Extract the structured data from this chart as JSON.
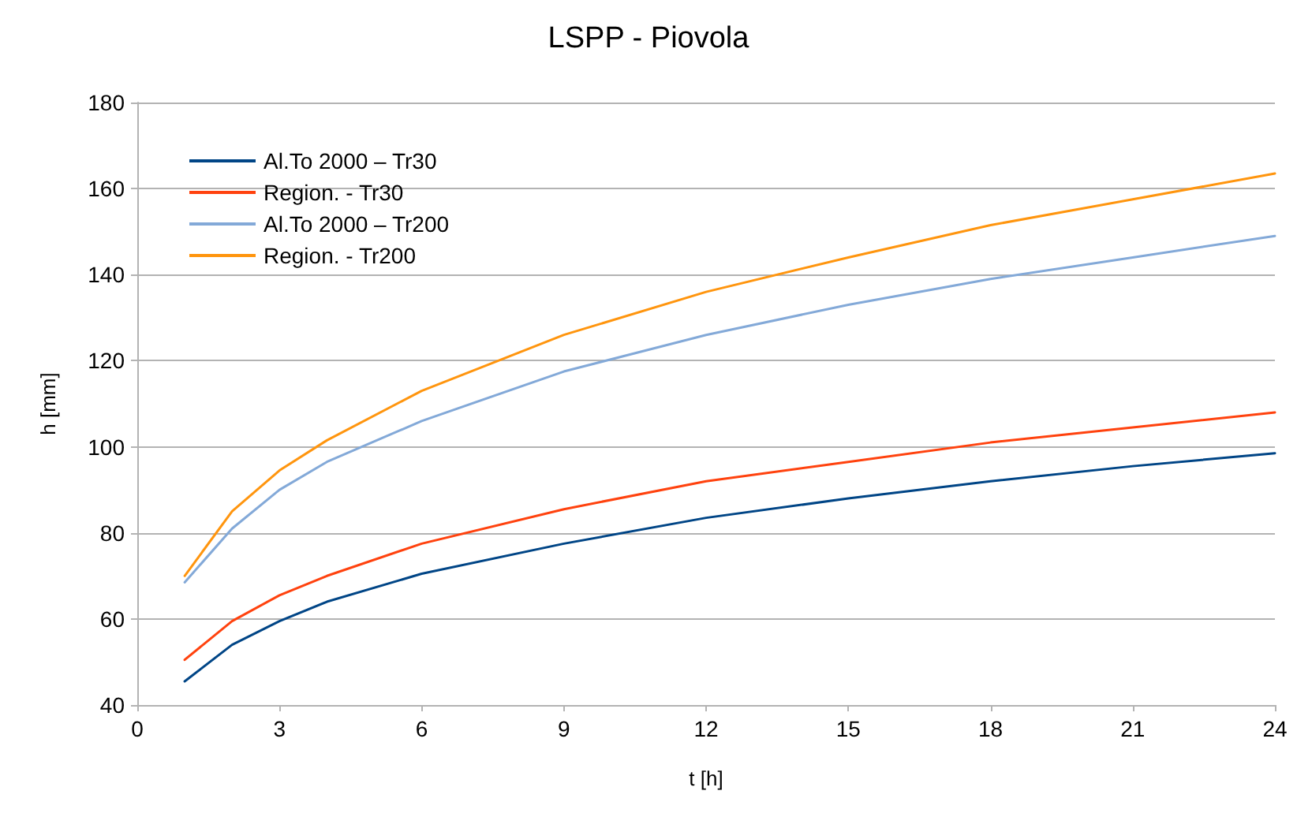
{
  "chart_data": {
    "type": "line",
    "title": "LSPP - Piovola",
    "xlabel": "t [h]",
    "ylabel": "h [mm]",
    "x": [
      1,
      2,
      3,
      4,
      6,
      9,
      12,
      15,
      18,
      21,
      24
    ],
    "series": [
      {
        "name": "Al.To 2000 – Tr30",
        "color": "#004586",
        "values": [
          45.5,
          54,
          59.5,
          64,
          70.5,
          77.5,
          83.5,
          88,
          92,
          95.5,
          98.5
        ]
      },
      {
        "name": "Region. - Tr30",
        "color": "#ff420e",
        "values": [
          50.5,
          59.5,
          65.5,
          70,
          77.5,
          85.5,
          92,
          96.5,
          101,
          104.5,
          108
        ]
      },
      {
        "name": "Al.To 2000 – Tr200",
        "color": "#83a9d8",
        "values": [
          68.5,
          81,
          90,
          96.5,
          106,
          117.5,
          126,
          133,
          139,
          144,
          149
        ]
      },
      {
        "name": "Region. - Tr200",
        "color": "#ff950e",
        "values": [
          70,
          85,
          94.5,
          101.5,
          113,
          126,
          136,
          144,
          151.5,
          157.5,
          163.5
        ]
      }
    ],
    "xlim": [
      0,
      24
    ],
    "xticks": [
      0,
      3,
      6,
      9,
      12,
      15,
      18,
      21,
      24
    ],
    "ylim": [
      40,
      180
    ],
    "yticks": [
      40,
      60,
      80,
      100,
      120,
      140,
      160,
      180
    ],
    "grid": "y",
    "legend": "top left",
    "marker": "none",
    "line_style": "solid"
  }
}
